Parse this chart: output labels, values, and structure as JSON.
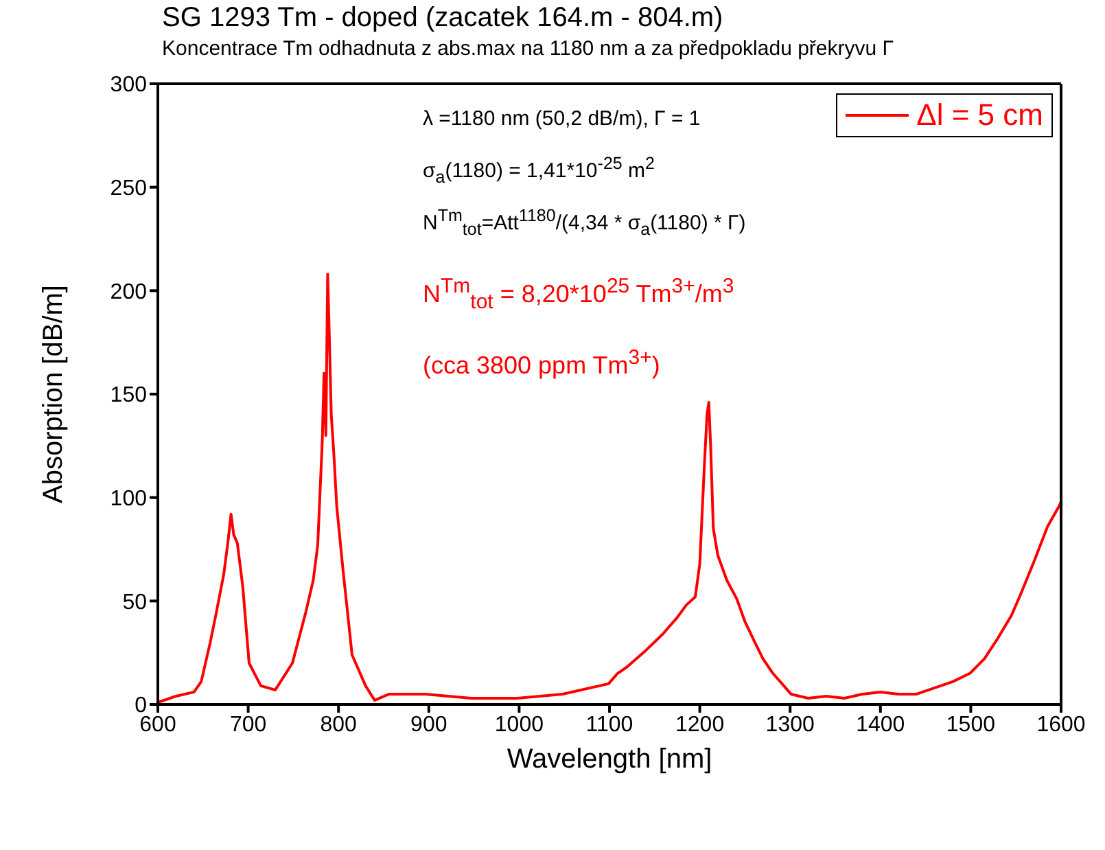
{
  "chart_data": {
    "type": "line",
    "title": "SG 1293 Tm - doped (zacatek 164.m - 804.m)",
    "subtitle": "Koncentrace Tm odhadnuta z abs.max na 1180 nm a za předpokladu překryvu Γ",
    "xlabel": "Wavelength [nm]",
    "ylabel": "Absorption [dB/m]",
    "xlim": [
      600,
      1600
    ],
    "xticks": [
      600,
      700,
      800,
      900,
      1000,
      1100,
      1200,
      1300,
      1400,
      1500,
      1600
    ],
    "ylim": [
      0,
      300
    ],
    "yticks": [
      0,
      50,
      100,
      150,
      200,
      250,
      300
    ],
    "legend": "top right",
    "marker": "none",
    "line_style": "solid",
    "annotations": [
      "λ =1180 nm (50,2 dB/m), Γ = 1",
      "σ$_{a}$(1180) = 1,41*10$^{-25}$ m$^{2}$",
      "N$^{Tm}$$_{tot}$=Att$^{1180}$/(4,34 * σ$_{a}$(1180) * Γ)",
      "N$^{Tm}$$_{tot}$ = 8,20*10$^{25}$ Tm$^{3+}$/m$^{3}$",
      "(cca 3800 ppm Tm$^{3+}$)"
    ],
    "series": [
      {
        "name": "Δl = 5 cm",
        "color": "#ff0000",
        "x": [
          600,
          620,
          640,
          648,
          658,
          665,
          673,
          678,
          681,
          684,
          688,
          694,
          701,
          714,
          730,
          749,
          764,
          772,
          777,
          782,
          784,
          786,
          788,
          790,
          792,
          795,
          798,
          805,
          815,
          830,
          840,
          856,
          896,
          947,
          998,
          1048,
          1099,
          1109,
          1119,
          1140,
          1159,
          1175,
          1185,
          1195,
          1200,
          1205,
          1208,
          1210,
          1212,
          1215,
          1220,
          1230,
          1241,
          1250,
          1261,
          1270,
          1281,
          1301,
          1320,
          1340,
          1360,
          1380,
          1400,
          1420,
          1440,
          1460,
          1480,
          1499,
          1515,
          1530,
          1545,
          1555,
          1570,
          1585,
          1598,
          1600
        ],
        "values": [
          1,
          4,
          6,
          11,
          30,
          45,
          63,
          80,
          92,
          82,
          78,
          57,
          20,
          9,
          7,
          20,
          45,
          60,
          77,
          127,
          160,
          130,
          208,
          175,
          140,
          120,
          96,
          65,
          24,
          9,
          2,
          5,
          5,
          3,
          3,
          5,
          10,
          15,
          18,
          26,
          34,
          42,
          48,
          52,
          68,
          115,
          140,
          146,
          125,
          85,
          72,
          60,
          51,
          40,
          30,
          22,
          15,
          5,
          3,
          4,
          3,
          5,
          6,
          5,
          5,
          8,
          11,
          15,
          22,
          32,
          43,
          53,
          69,
          86,
          96,
          98
        ]
      }
    ]
  }
}
